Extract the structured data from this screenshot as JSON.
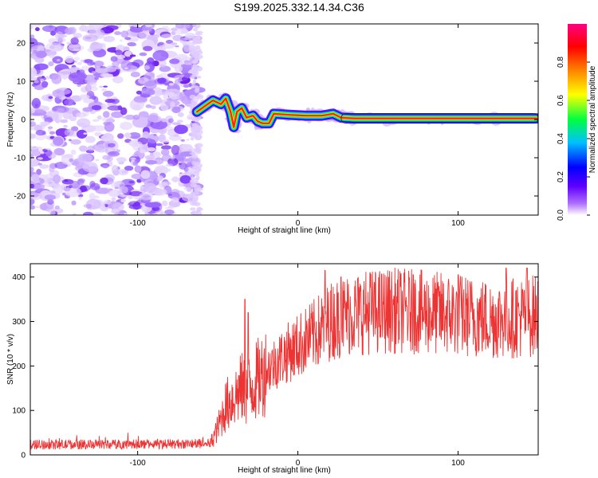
{
  "title": "S199.2025.332.14.34.C36",
  "chart_data": [
    {
      "type": "heatmap",
      "xlabel": "Height of straight line (km)",
      "ylabel": "Frequency (Hz)",
      "xlim": [
        -167,
        150
      ],
      "ylim": [
        -25,
        25
      ],
      "xticks": [
        -100,
        0,
        100
      ],
      "yticks": [
        -20,
        -10,
        0,
        10,
        20
      ],
      "xtick_labels": [
        "-100",
        "0",
        "100"
      ],
      "ytick_labels": [
        "-20",
        "-10",
        "0",
        "10",
        "20"
      ],
      "colorbar": {
        "label": "Normalized spectral amplitude",
        "range": [
          0,
          1
        ],
        "ticks": [
          "0.0",
          "0.2",
          "0.4",
          "0.6",
          "0.8"
        ],
        "tick_values": [
          0.0,
          0.2,
          0.4,
          0.6,
          0.8
        ],
        "colors": [
          "#ffffff",
          "#8000ff",
          "#0000ff",
          "#00ffff",
          "#00ff00",
          "#ffff00",
          "#ff8000",
          "#ff0000",
          "#ff0080"
        ]
      },
      "noise_region_x": [
        -167,
        -62
      ],
      "ridge": [
        [
          -63,
          2
        ],
        [
          -58,
          3.5
        ],
        [
          -53,
          5
        ],
        [
          -48,
          4
        ],
        [
          -45,
          5.5
        ],
        [
          -42,
          2
        ],
        [
          -40,
          -2
        ],
        [
          -38,
          2
        ],
        [
          -35,
          3
        ],
        [
          -32,
          0.5
        ],
        [
          -28,
          1
        ],
        [
          -25,
          -0.5
        ],
        [
          -22,
          -1
        ],
        [
          -18,
          -1
        ],
        [
          -15,
          1.5
        ],
        [
          -5,
          1.2
        ],
        [
          5,
          1.0
        ],
        [
          15,
          1.0
        ],
        [
          22,
          1.5
        ],
        [
          27,
          0.5
        ],
        [
          35,
          0.3
        ],
        [
          60,
          0.3
        ],
        [
          100,
          0.3
        ],
        [
          150,
          0.3
        ]
      ]
    },
    {
      "type": "line",
      "xlabel": "Height of straight line (km)",
      "ylabel": "SNR (10 * v/v)",
      "xlim": [
        -167,
        150
      ],
      "ylim": [
        0,
        430
      ],
      "xticks": [
        -100,
        0,
        100
      ],
      "yticks": [
        0,
        100,
        200,
        300,
        400
      ],
      "xtick_labels": [
        "-100",
        "0",
        "100"
      ],
      "ytick_labels": [
        "0",
        "100",
        "200",
        "300",
        "400"
      ],
      "color": "#ee3333",
      "series": [
        {
          "name": "SNR",
          "envelope": [
            [
              -167,
              20
            ],
            [
              -55,
              22
            ],
            [
              -50,
              60
            ],
            [
              -45,
              110
            ],
            [
              -40,
              130
            ],
            [
              -35,
              150
            ],
            [
              -32,
              140
            ],
            [
              -25,
              170
            ],
            [
              -20,
              190
            ],
            [
              -10,
              220
            ],
            [
              0,
              245
            ],
            [
              10,
              270
            ],
            [
              20,
              300
            ],
            [
              30,
              315
            ],
            [
              40,
              320
            ],
            [
              60,
              325
            ],
            [
              80,
              320
            ],
            [
              100,
              315
            ],
            [
              120,
              305
            ],
            [
              140,
              310
            ],
            [
              150,
              315
            ]
          ],
          "peaks": [
            [
              -33,
              350
            ],
            [
              -31,
              320
            ],
            [
              17,
              415
            ],
            [
              27,
              400
            ],
            [
              45,
              410
            ],
            [
              72,
              405
            ],
            [
              100,
              405
            ],
            [
              130,
              420
            ],
            [
              143,
              420
            ]
          ]
        }
      ]
    }
  ]
}
